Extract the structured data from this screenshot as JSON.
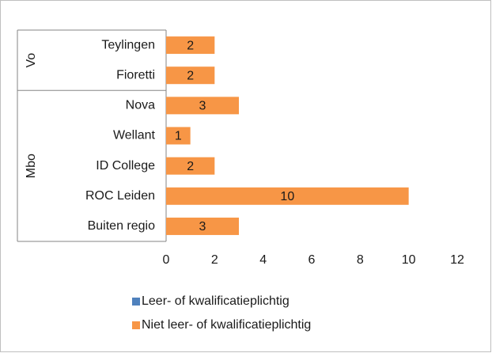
{
  "chart_data": {
    "type": "bar",
    "orientation": "horizontal",
    "groups": [
      {
        "label": "Vo",
        "categories": [
          "Teylingen",
          "Fioretti"
        ]
      },
      {
        "label": "Mbo",
        "categories": [
          "Nova",
          "Wellant",
          "ID College",
          "ROC Leiden",
          "Buiten regio"
        ]
      }
    ],
    "series": [
      {
        "name": "Leer- of kwalificatieplichtig",
        "color": "#4f81bd",
        "values": [
          0,
          0,
          0,
          0,
          0,
          0,
          0
        ]
      },
      {
        "name": "Niet leer- of kwalificatieplichtig",
        "color": "#f79646",
        "values": [
          2,
          2,
          3,
          1,
          2,
          10,
          3
        ]
      }
    ],
    "xlim": [
      0,
      12
    ],
    "xticks": [
      0,
      2,
      4,
      6,
      8,
      10,
      12
    ],
    "grid": false,
    "legend": "bottom"
  }
}
